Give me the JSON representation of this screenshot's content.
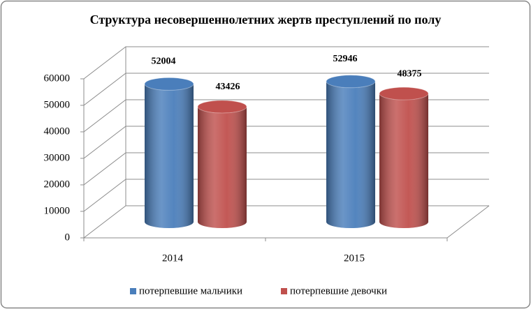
{
  "chart_data": {
    "type": "bar3d-cylinder",
    "title": "Структура несовершеннолетних жертв преступлений по полу",
    "categories": [
      "2014",
      "2015"
    ],
    "series": [
      {
        "name": "потерпевшие мальчики",
        "color": "#4a7ebb",
        "values": [
          52004,
          52946
        ]
      },
      {
        "name": "потерпевшие девочки",
        "color": "#c0504d",
        "values": [
          43426,
          48375
        ]
      }
    ],
    "ylim": [
      0,
      60000
    ],
    "yticks": [
      0,
      10000,
      20000,
      30000,
      40000,
      50000,
      60000
    ],
    "grid": true,
    "legend": "bottom"
  }
}
